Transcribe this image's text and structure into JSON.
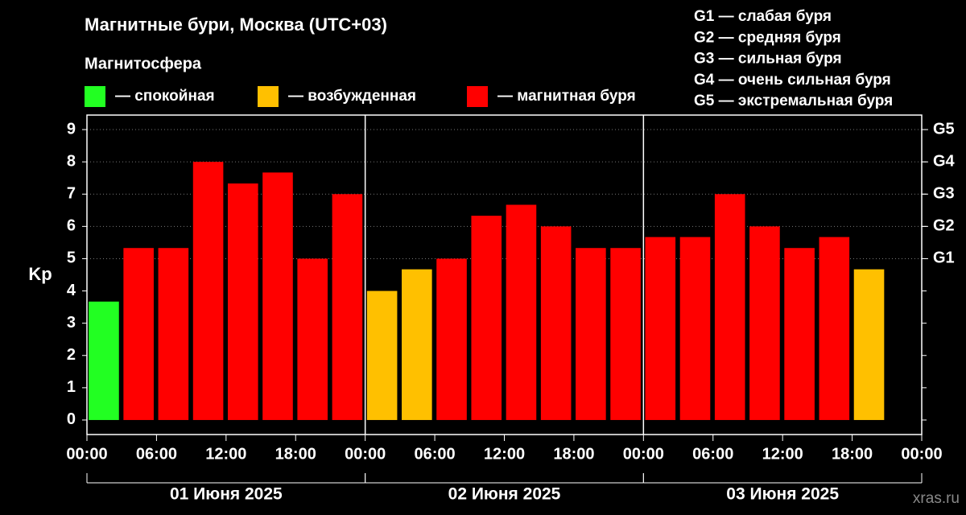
{
  "chart_data": {
    "type": "bar",
    "title": "Магнитные бури, Москва (UTC+03)",
    "legend_title": "Магнитосфера",
    "legend": [
      {
        "color": "#22ff22",
        "label": "— спокойная"
      },
      {
        "color": "#ffc000",
        "label": "— возбужденная"
      },
      {
        "color": "#ff0000",
        "label": "— магнитная буря"
      }
    ],
    "scale_notes": [
      "G1 — слабая буря",
      "G2 — средняя буря",
      "G3 — сильная буря",
      "G4 — очень сильная буря",
      "G5 — экстремальная буря"
    ],
    "y_label": "Kp",
    "x": [
      0,
      3,
      6,
      9,
      12,
      15,
      18,
      21,
      24,
      27,
      30,
      33,
      36,
      39,
      42,
      45,
      48,
      51,
      54,
      57,
      60,
      63,
      66,
      69
    ],
    "values": [
      3.67,
      5.33,
      5.33,
      8,
      7.33,
      7.67,
      5,
      7,
      4,
      4.67,
      5,
      6.33,
      6.67,
      6,
      5.33,
      5.33,
      5.67,
      5.67,
      7,
      6,
      5.33,
      5.67,
      4.67,
      null
    ],
    "colors": [
      "#22ff22",
      "#ff0000",
      "#ff0000",
      "#ff0000",
      "#ff0000",
      "#ff0000",
      "#ff0000",
      "#ff0000",
      "#ffc000",
      "#ffc000",
      "#ff0000",
      "#ff0000",
      "#ff0000",
      "#ff0000",
      "#ff0000",
      "#ff0000",
      "#ff0000",
      "#ff0000",
      "#ff0000",
      "#ff0000",
      "#ff0000",
      "#ff0000",
      "#ffc000",
      null
    ],
    "xlim": [
      0,
      72
    ],
    "xticks": [
      {
        "value": 0,
        "label": "00:00"
      },
      {
        "value": 6,
        "label": "06:00"
      },
      {
        "value": 12,
        "label": "12:00"
      },
      {
        "value": 18,
        "label": "18:00"
      },
      {
        "value": 24,
        "label": "00:00"
      },
      {
        "value": 30,
        "label": "06:00"
      },
      {
        "value": 36,
        "label": "12:00"
      },
      {
        "value": 42,
        "label": "18:00"
      },
      {
        "value": 48,
        "label": "00:00"
      },
      {
        "value": 54,
        "label": "06:00"
      },
      {
        "value": 60,
        "label": "12:00"
      },
      {
        "value": 66,
        "label": "18:00"
      },
      {
        "value": 72,
        "label": "00:00"
      }
    ],
    "day_labels": [
      "01 Июня 2025",
      "02 Июня 2025",
      "03 Июня 2025"
    ],
    "ylim": [
      -0.45,
      9.45
    ],
    "yticks": [
      0,
      1,
      2,
      3,
      4,
      5,
      6,
      7,
      8,
      9
    ],
    "y2ticks": [
      {
        "value": 5,
        "label": "G1"
      },
      {
        "value": 6,
        "label": "G2"
      },
      {
        "value": 7,
        "label": "G3"
      },
      {
        "value": 8,
        "label": "G4"
      },
      {
        "value": 9,
        "label": "G5"
      }
    ],
    "watermark": "xras.ru"
  }
}
